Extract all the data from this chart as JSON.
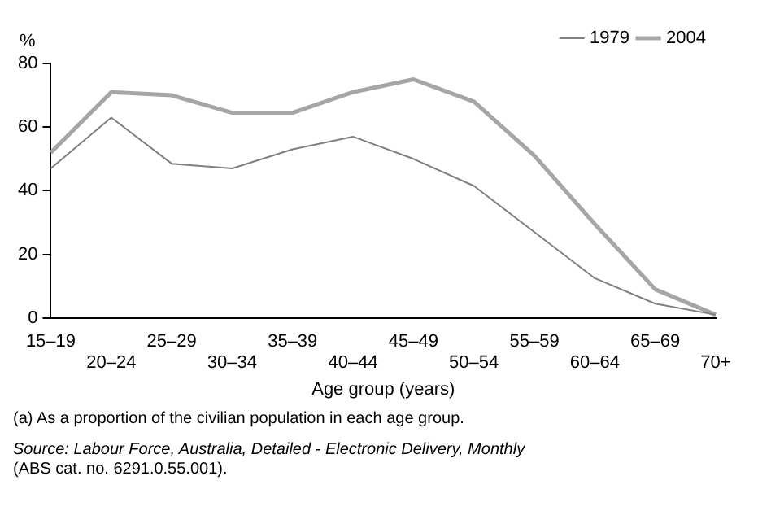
{
  "chart_data": {
    "type": "line",
    "xlabel": "Age group (years)",
    "ylabel": "%",
    "categories": [
      "15–19",
      "20–24",
      "25–29",
      "30–34",
      "35–39",
      "40–44",
      "45–49",
      "50–54",
      "55–59",
      "60–64",
      "65–69",
      "70+"
    ],
    "series": [
      {
        "name": "1979",
        "color": "#808080",
        "values": [
          47,
          63,
          48.5,
          47,
          53,
          57,
          50,
          41.5,
          27,
          12.5,
          4.5,
          1
        ]
      },
      {
        "name": "2004",
        "color": "#a6a6a6",
        "values": [
          52,
          71,
          70,
          64.5,
          64.5,
          71,
          75,
          68,
          51,
          29.5,
          9,
          1
        ]
      }
    ],
    "ylim": [
      0,
      80
    ],
    "yticks": [
      0,
      20,
      40,
      60,
      80
    ],
    "grid": false,
    "legend": "top right",
    "marker": "none",
    "line_style": "solid",
    "annotations": [
      "(a) As a proportion of the civilian population in each age group.",
      "Source: Labour Force, Australia, Detailed - Electronic Delivery, Monthly",
      "(ABS cat. no. 6291.0.55.001)."
    ]
  }
}
